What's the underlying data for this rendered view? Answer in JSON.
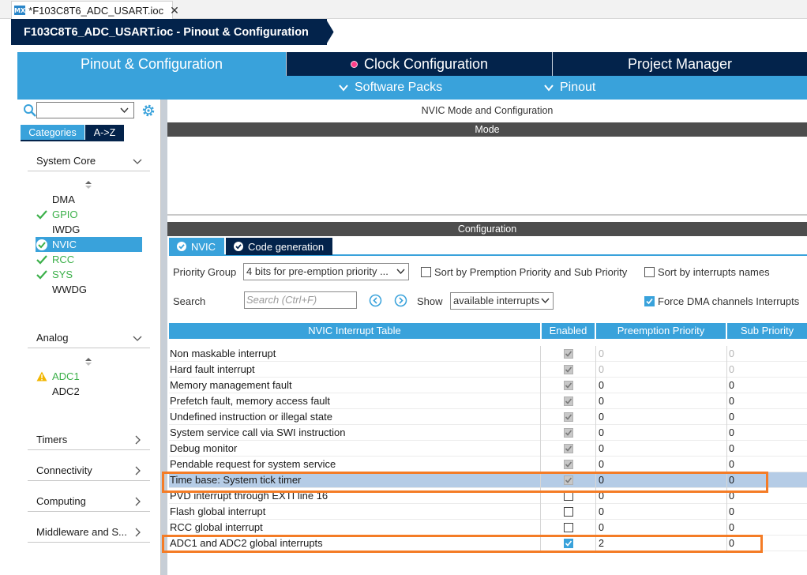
{
  "file_tab": {
    "icon_text": "MX",
    "label": "*F103C8T6_ADC_USART.ioc",
    "close": "✕"
  },
  "breadcrumb": {
    "label": "F103C8T6_ADC_USART.ioc - Pinout & Configuration"
  },
  "main_tabs": {
    "pinout": "Pinout & Configuration",
    "clock": "Clock Configuration",
    "project": "Project Manager"
  },
  "sub_bar": {
    "software_packs": "Software Packs",
    "pinout": "Pinout"
  },
  "left": {
    "tabs": {
      "categories": "Categories",
      "az": "A->Z"
    },
    "system_core": {
      "label": "System Core",
      "items": [
        {
          "label": "DMA",
          "status": "none"
        },
        {
          "label": "GPIO",
          "status": "ok"
        },
        {
          "label": "IWDG",
          "status": "none"
        },
        {
          "label": "NVIC",
          "status": "ok",
          "selected": true
        },
        {
          "label": "RCC",
          "status": "ok"
        },
        {
          "label": "SYS",
          "status": "ok"
        },
        {
          "label": "WWDG",
          "status": "none"
        }
      ]
    },
    "analog": {
      "label": "Analog",
      "items": [
        {
          "label": "ADC1",
          "status": "warn"
        },
        {
          "label": "ADC2",
          "status": "none"
        }
      ]
    },
    "timers": "Timers",
    "connectivity": "Connectivity",
    "computing": "Computing",
    "middleware": "Middleware and S..."
  },
  "right": {
    "title": "NVIC Mode and Configuration",
    "mode_bar": "Mode",
    "config_bar": "Configuration",
    "tabs": {
      "nvic": "NVIC",
      "code": "Code generation"
    },
    "priority_group_label": "Priority Group",
    "priority_group_value": "4 bits for pre-emption priority ...",
    "sort_premption_label": "Sort by Premption Priority and Sub Priority",
    "sort_names_label": "Sort by interrupts names",
    "search_label": "Search",
    "search_placeholder": "Search (Ctrl+F)",
    "show_label": "Show",
    "show_value": "available interrupts",
    "force_dma_label": "Force DMA channels Interrupts"
  },
  "table": {
    "headers": {
      "name": "NVIC Interrupt Table",
      "enabled": "Enabled",
      "preemption": "Preemption Priority",
      "sub": "Sub Priority"
    },
    "rows": [
      {
        "name": "Non maskable interrupt",
        "enabled": true,
        "locked": true,
        "pre": "0",
        "sub": "0",
        "pre_disabled": true
      },
      {
        "name": "Hard fault interrupt",
        "enabled": true,
        "locked": true,
        "pre": "0",
        "sub": "0",
        "pre_disabled": true
      },
      {
        "name": "Memory management fault",
        "enabled": true,
        "locked": true,
        "pre": "0",
        "sub": "0",
        "pre_disabled": false
      },
      {
        "name": "Prefetch fault, memory access fault",
        "enabled": true,
        "locked": true,
        "pre": "0",
        "sub": "0",
        "pre_disabled": false
      },
      {
        "name": "Undefined instruction or illegal state",
        "enabled": true,
        "locked": true,
        "pre": "0",
        "sub": "0",
        "pre_disabled": false
      },
      {
        "name": "System service call via SWI instruction",
        "enabled": true,
        "locked": true,
        "pre": "0",
        "sub": "0",
        "pre_disabled": false
      },
      {
        "name": "Debug monitor",
        "enabled": true,
        "locked": true,
        "pre": "0",
        "sub": "0",
        "pre_disabled": false
      },
      {
        "name": "Pendable request for system service",
        "enabled": true,
        "locked": true,
        "pre": "0",
        "sub": "0",
        "pre_disabled": false
      },
      {
        "name": "Time base: System tick timer",
        "enabled": true,
        "locked": true,
        "pre": "0",
        "sub": "0",
        "pre_disabled": false,
        "highlight": true
      },
      {
        "name": "PVD interrupt through EXTI line 16",
        "enabled": false,
        "locked": false,
        "pre": "0",
        "sub": "0",
        "pre_disabled": false
      },
      {
        "name": "Flash global interrupt",
        "enabled": false,
        "locked": false,
        "pre": "0",
        "sub": "0",
        "pre_disabled": false
      },
      {
        "name": "RCC global interrupt",
        "enabled": false,
        "locked": false,
        "pre": "0",
        "sub": "0",
        "pre_disabled": false
      },
      {
        "name": "ADC1 and ADC2 global interrupts",
        "enabled": true,
        "locked": false,
        "pre": "2",
        "sub": "0",
        "pre_disabled": false
      }
    ]
  },
  "colors": {
    "navy": "#03234b",
    "accent": "#39a2db",
    "ok": "#3cb04a",
    "warn": "#f2b600",
    "highlight_box": "#f47c26"
  }
}
